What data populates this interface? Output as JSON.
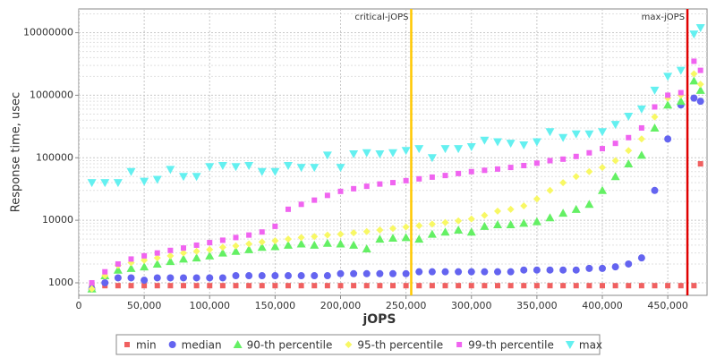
{
  "chart_data": {
    "type": "scatter",
    "xlabel": "jOPS",
    "ylabel": "Response time, usec",
    "x": [
      10000,
      20000,
      30000,
      40000,
      50000,
      60000,
      70000,
      80000,
      90000,
      100000,
      110000,
      120000,
      130000,
      140000,
      150000,
      160000,
      170000,
      180000,
      190000,
      200000,
      210000,
      220000,
      230000,
      240000,
      250000,
      260000,
      270000,
      280000,
      290000,
      300000,
      310000,
      320000,
      330000,
      340000,
      350000,
      360000,
      370000,
      380000,
      390000,
      400000,
      410000,
      420000,
      430000,
      440000,
      450000,
      460000,
      470000,
      475000
    ],
    "xlim": [
      0,
      480000
    ],
    "xticks": [
      0,
      {
        "value": 50000,
        "label": "50,000"
      },
      {
        "value": 100000,
        "label": "100,000"
      },
      {
        "value": 150000,
        "label": "150,000"
      },
      {
        "value": 200000,
        "label": "200,000"
      },
      {
        "value": 250000,
        "label": "250,000"
      },
      {
        "value": 300000,
        "label": "300,000"
      },
      {
        "value": 350000,
        "label": "350,000"
      },
      {
        "value": 400000,
        "label": "400,000"
      },
      {
        "value": 450000,
        "label": "450,000"
      }
    ],
    "ylim": [
      630,
      24000000
    ],
    "yscale": "log",
    "yticks": [
      1000,
      10000,
      100000,
      1000000,
      10000000
    ],
    "grid": true,
    "markers": [
      {
        "label": "critical-jOPS",
        "value": 254000,
        "color": "#ffc800"
      },
      {
        "label": "max-jOPS",
        "value": 465000,
        "color": "#e00000"
      }
    ],
    "series": [
      {
        "name": "min",
        "color": "#f06060",
        "marker": "square",
        "values": [
          900,
          900,
          900,
          900,
          900,
          900,
          900,
          900,
          900,
          900,
          900,
          900,
          900,
          900,
          900,
          900,
          900,
          900,
          900,
          900,
          900,
          900,
          900,
          900,
          900,
          900,
          900,
          900,
          900,
          900,
          900,
          900,
          900,
          900,
          900,
          900,
          900,
          900,
          900,
          900,
          900,
          900,
          900,
          900,
          900,
          900,
          900,
          80000
        ]
      },
      {
        "name": "median",
        "color": "#6464f0",
        "marker": "circle",
        "values": [
          800,
          1000,
          1200,
          1200,
          1100,
          1200,
          1200,
          1200,
          1200,
          1200,
          1200,
          1300,
          1300,
          1300,
          1300,
          1300,
          1300,
          1300,
          1300,
          1400,
          1400,
          1400,
          1400,
          1400,
          1400,
          1500,
          1500,
          1500,
          1500,
          1500,
          1500,
          1500,
          1500,
          1600,
          1600,
          1600,
          1600,
          1600,
          1700,
          1700,
          1800,
          2000,
          2500,
          30000,
          200000,
          700000,
          900000,
          800000
        ]
      },
      {
        "name": "90-th percentile",
        "color": "#64f064",
        "marker": "triangle-up",
        "values": [
          800,
          1300,
          1600,
          1700,
          1800,
          2000,
          2200,
          2400,
          2500,
          2700,
          3000,
          3200,
          3400,
          3700,
          3800,
          4000,
          4200,
          4000,
          4300,
          4200,
          4000,
          3500,
          5000,
          5200,
          5300,
          5000,
          6000,
          6500,
          7000,
          6500,
          8000,
          8500,
          8500,
          9000,
          9500,
          11000,
          13000,
          15000,
          18000,
          30000,
          50000,
          80000,
          110000,
          300000,
          700000,
          800000,
          1700000,
          1200000
        ]
      },
      {
        "name": "95-th percentile",
        "color": "#f8f864",
        "marker": "diamond",
        "values": [
          800,
          1300,
          1900,
          2100,
          2300,
          2500,
          2700,
          3000,
          3200,
          3400,
          3700,
          3900,
          4200,
          4500,
          4700,
          5000,
          5300,
          5500,
          5800,
          6000,
          6300,
          6600,
          7000,
          7400,
          7800,
          8200,
          8700,
          9200,
          9800,
          10500,
          12000,
          14000,
          15000,
          17000,
          22000,
          30000,
          40000,
          50000,
          60000,
          70000,
          90000,
          130000,
          200000,
          450000,
          900000,
          1000000,
          2200000,
          1500000
        ]
      },
      {
        "name": "99-th percentile",
        "color": "#f064f0",
        "marker": "square",
        "values": [
          1000,
          1500,
          2000,
          2400,
          2700,
          3000,
          3300,
          3600,
          4000,
          4400,
          4800,
          5300,
          5800,
          6500,
          8000,
          15000,
          18000,
          21000,
          25000,
          29000,
          32000,
          35000,
          38000,
          40000,
          43000,
          46000,
          49000,
          52000,
          56000,
          60000,
          63000,
          66000,
          70000,
          75000,
          82000,
          90000,
          95000,
          105000,
          120000,
          140000,
          170000,
          210000,
          300000,
          650000,
          1000000,
          1100000,
          3500000,
          2500000
        ]
      },
      {
        "name": "max",
        "color": "#64f0f0",
        "marker": "triangle-down",
        "values": [
          40000,
          40000,
          40000,
          60000,
          42000,
          45000,
          65000,
          50000,
          50000,
          72000,
          75000,
          72000,
          75000,
          60000,
          60000,
          75000,
          70000,
          70000,
          110000,
          70000,
          115000,
          120000,
          115000,
          120000,
          130000,
          140000,
          100000,
          140000,
          140000,
          150000,
          190000,
          180000,
          170000,
          160000,
          180000,
          260000,
          210000,
          240000,
          240000,
          260000,
          340000,
          460000,
          600000,
          1200000,
          2000000,
          2500000,
          9500000,
          12000000
        ]
      }
    ]
  }
}
